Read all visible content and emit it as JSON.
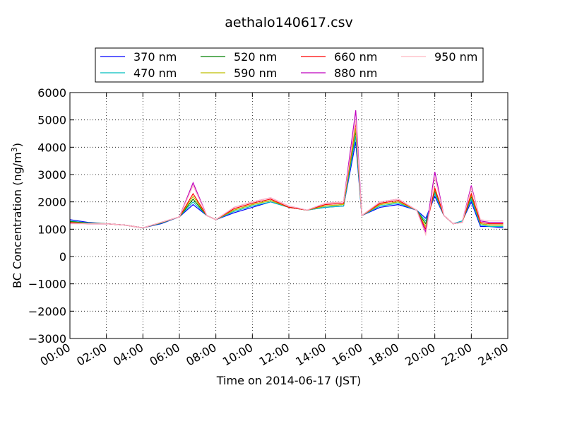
{
  "chart_data": {
    "type": "line",
    "title": "aethalo140617.csv",
    "xlabel": "Time on 2014-06-17 (JST)",
    "ylabel": "BC Concentration (ng/m",
    "ylabel_sup": "3",
    "ylabel_suffix": ")",
    "xlim": [
      "00:00",
      "24:00"
    ],
    "ylim": [
      -3000,
      6000
    ],
    "x_ticks": [
      "00:00",
      "02:00",
      "04:00",
      "06:00",
      "08:00",
      "10:00",
      "12:00",
      "14:00",
      "16:00",
      "18:00",
      "20:00",
      "22:00",
      "24:00"
    ],
    "y_ticks": [
      "6000",
      "5000",
      "4000",
      "3000",
      "2000",
      "1000",
      "0",
      "−1000",
      "−2000",
      "−3000"
    ],
    "grid": true,
    "legend_position": "top",
    "series": [
      {
        "name": "370 nm",
        "color": "#0000ff",
        "x": [
          "00:00",
          "01:00",
          "02:00",
          "03:00",
          "04:00",
          "05:00",
          "06:00",
          "06:45",
          "07:30",
          "08:00",
          "09:00",
          "10:00",
          "11:00",
          "12:00",
          "13:00",
          "14:00",
          "15:00",
          "15:40",
          "16:00",
          "17:00",
          "18:00",
          "19:00",
          "19:30",
          "20:00",
          "20:30",
          "21:00",
          "21:30",
          "22:00",
          "22:30",
          "23:00",
          "23:45"
        ],
        "values": [
          1350,
          1250,
          1200,
          1150,
          1050,
          1200,
          1450,
          1900,
          1500,
          1350,
          1600,
          1800,
          2000,
          1800,
          1700,
          1800,
          1850,
          4200,
          1500,
          1800,
          1900,
          1700,
          1400,
          2200,
          1500,
          1200,
          1300,
          2000,
          1100,
          1100,
          1050
        ]
      },
      {
        "name": "470 nm",
        "color": "#00bfbf",
        "x": [
          "00:00",
          "01:00",
          "02:00",
          "03:00",
          "04:00",
          "05:00",
          "06:00",
          "06:45",
          "07:30",
          "08:00",
          "09:00",
          "10:00",
          "11:00",
          "12:00",
          "13:00",
          "14:00",
          "15:00",
          "15:40",
          "16:00",
          "17:00",
          "18:00",
          "19:00",
          "19:30",
          "20:00",
          "20:30",
          "21:00",
          "21:30",
          "22:00",
          "22:30",
          "23:00",
          "23:45"
        ],
        "values": [
          1300,
          1230,
          1200,
          1150,
          1050,
          1220,
          1450,
          2000,
          1500,
          1350,
          1650,
          1850,
          2000,
          1800,
          1700,
          1800,
          1850,
          4400,
          1500,
          1850,
          1950,
          1700,
          1300,
          2300,
          1500,
          1200,
          1300,
          2100,
          1150,
          1100,
          1100
        ]
      },
      {
        "name": "520 nm",
        "color": "#008000",
        "x": [
          "00:00",
          "01:00",
          "02:00",
          "03:00",
          "04:00",
          "05:00",
          "06:00",
          "06:45",
          "07:30",
          "08:00",
          "09:00",
          "10:00",
          "11:00",
          "12:00",
          "13:00",
          "14:00",
          "15:00",
          "15:40",
          "16:00",
          "17:00",
          "18:00",
          "19:00",
          "19:30",
          "20:00",
          "20:30",
          "21:00",
          "21:30",
          "22:00",
          "22:30",
          "23:00",
          "23:45"
        ],
        "values": [
          1280,
          1220,
          1200,
          1150,
          1050,
          1230,
          1450,
          2100,
          1500,
          1350,
          1700,
          1900,
          2050,
          1800,
          1700,
          1850,
          1900,
          4600,
          1500,
          1900,
          2000,
          1700,
          1200,
          2400,
          1500,
          1200,
          1250,
          2200,
          1200,
          1150,
          1150
        ]
      },
      {
        "name": "590 nm",
        "color": "#bfbf00",
        "x": [
          "00:00",
          "01:00",
          "02:00",
          "03:00",
          "04:00",
          "05:00",
          "06:00",
          "06:45",
          "07:30",
          "08:00",
          "09:00",
          "10:00",
          "11:00",
          "12:00",
          "13:00",
          "14:00",
          "15:00",
          "15:40",
          "16:00",
          "17:00",
          "18:00",
          "19:00",
          "19:30",
          "20:00",
          "20:30",
          "21:00",
          "21:30",
          "22:00",
          "22:30",
          "23:00",
          "23:45"
        ],
        "values": [
          1260,
          1210,
          1200,
          1150,
          1050,
          1240,
          1450,
          2200,
          1500,
          1350,
          1700,
          1900,
          2050,
          1800,
          1700,
          1850,
          1900,
          4700,
          1500,
          1900,
          2000,
          1700,
          1100,
          2450,
          1500,
          1200,
          1250,
          2250,
          1200,
          1150,
          1150
        ]
      },
      {
        "name": "660 nm",
        "color": "#ff0000",
        "x": [
          "00:00",
          "01:00",
          "02:00",
          "03:00",
          "04:00",
          "05:00",
          "06:00",
          "06:45",
          "07:30",
          "08:00",
          "09:00",
          "10:00",
          "11:00",
          "12:00",
          "13:00",
          "14:00",
          "15:00",
          "15:40",
          "16:00",
          "17:00",
          "18:00",
          "19:00",
          "19:30",
          "20:00",
          "20:30",
          "21:00",
          "21:30",
          "22:00",
          "22:30",
          "23:00",
          "23:45"
        ],
        "values": [
          1240,
          1200,
          1200,
          1150,
          1050,
          1250,
          1450,
          2300,
          1500,
          1350,
          1750,
          1950,
          2100,
          1800,
          1700,
          1900,
          1950,
          4900,
          1500,
          1950,
          2050,
          1700,
          1000,
          2500,
          1500,
          1200,
          1250,
          2300,
          1250,
          1200,
          1200
        ]
      },
      {
        "name": "880 nm",
        "color": "#bf00bf",
        "x": [
          "00:00",
          "01:00",
          "02:00",
          "03:00",
          "04:00",
          "05:00",
          "06:00",
          "06:45",
          "07:30",
          "08:00",
          "09:00",
          "10:00",
          "11:00",
          "12:00",
          "13:00",
          "14:00",
          "15:00",
          "15:40",
          "16:00",
          "17:00",
          "18:00",
          "19:00",
          "19:30",
          "20:00",
          "20:30",
          "21:00",
          "21:30",
          "22:00",
          "22:30",
          "23:00",
          "23:45"
        ],
        "values": [
          1220,
          1200,
          1200,
          1150,
          1050,
          1250,
          1450,
          2700,
          1500,
          1350,
          1800,
          2000,
          2150,
          1850,
          1700,
          1950,
          2000,
          5350,
          1500,
          2000,
          2100,
          1700,
          900,
          3100,
          1500,
          1200,
          1250,
          2600,
          1300,
          1250,
          1250
        ]
      },
      {
        "name": "950 nm",
        "color": "#ffb6c1",
        "x": [
          "00:00",
          "01:00",
          "02:00",
          "03:00",
          "04:00",
          "05:00",
          "06:00",
          "06:45",
          "07:30",
          "08:00",
          "09:00",
          "10:00",
          "11:00",
          "12:00",
          "13:00",
          "14:00",
          "15:00",
          "15:40",
          "16:00",
          "17:00",
          "18:00",
          "19:00",
          "19:30",
          "20:00",
          "20:30",
          "21:00",
          "21:30",
          "22:00",
          "22:30",
          "23:00",
          "23:45"
        ],
        "values": [
          1200,
          1200,
          1200,
          1150,
          1050,
          1250,
          1450,
          2600,
          1500,
          1350,
          1800,
          2000,
          2150,
          1850,
          1700,
          1950,
          2000,
          5000,
          1500,
          2000,
          2100,
          1700,
          800,
          2900,
          1500,
          1200,
          1250,
          2500,
          1350,
          1300,
          1300
        ]
      }
    ]
  }
}
